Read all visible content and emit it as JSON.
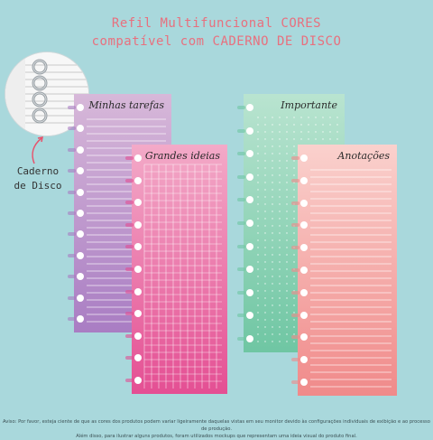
{
  "header": {
    "line1": "Refil Multifuncional CORES",
    "line2": "compatível com CADERNO DE DISCO"
  },
  "callout": {
    "line1": "Caderno",
    "line2": "de Disco"
  },
  "cards": [
    {
      "label": "Minhas tarefas",
      "style": "lined",
      "colors": [
        "#d6b6d8",
        "#a97cc2"
      ]
    },
    {
      "label": "Grandes ideias",
      "style": "grid",
      "colors": [
        "#f3a7c7",
        "#e34d92"
      ]
    },
    {
      "label": "Importante",
      "style": "dotted",
      "colors": [
        "#b7e3cf",
        "#6ec6a2"
      ]
    },
    {
      "label": "Anotações",
      "style": "lined",
      "colors": [
        "#f9cfcb",
        "#f08b8b"
      ]
    }
  ],
  "footer": {
    "line1": "Aviso: Por favor, esteja ciente de que as cores dos produtos podem variar ligeiramente daquelas vistas em seu monitor devido às configurações individuais de exibição e ao processo de produção.",
    "line2": "Além disso, para ilustrar alguns produtos, foram utilizados mockups que representam uma ideia visual do produto final."
  }
}
